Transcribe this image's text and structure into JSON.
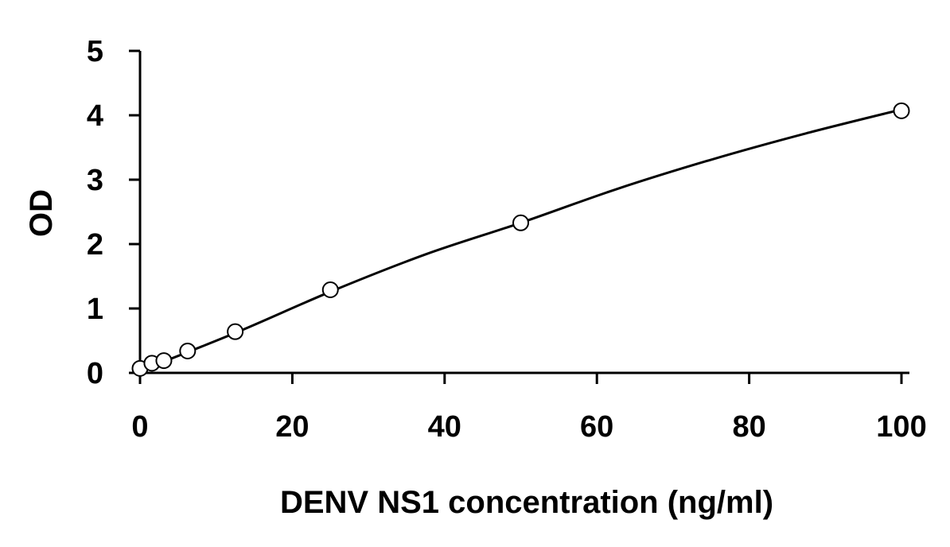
{
  "chart_data": {
    "type": "scatter",
    "xlabel": "DENV NS1 concentration (ng/ml)",
    "ylabel": "OD",
    "xlim": [
      0,
      100
    ],
    "ylim": [
      0,
      5
    ],
    "x_ticks": [
      0,
      20,
      40,
      60,
      80,
      100
    ],
    "y_ticks": [
      0,
      1,
      2,
      3,
      4,
      5
    ],
    "grid": false,
    "legend": "none",
    "series": [
      {
        "marker": "open-circle",
        "x": [
          0,
          1.56,
          3.13,
          6.25,
          12.5,
          25,
          50,
          100
        ],
        "y": [
          0.07,
          0.15,
          0.19,
          0.34,
          0.64,
          1.29,
          2.33,
          4.07
        ]
      }
    ],
    "fit_line": {
      "x": [
        0,
        12.5,
        25,
        37.5,
        50,
        62.5,
        75,
        87.5,
        100
      ],
      "y": [
        0.03,
        0.62,
        1.26,
        1.84,
        2.33,
        2.85,
        3.31,
        3.72,
        4.09
      ]
    }
  }
}
